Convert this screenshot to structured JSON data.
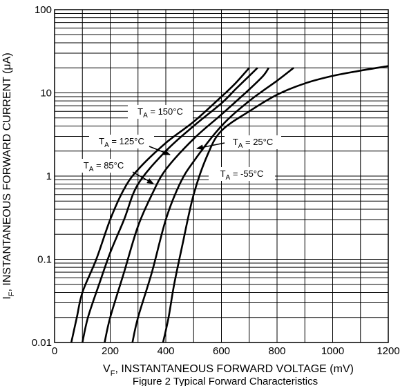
{
  "chart_data": {
    "type": "line",
    "title": "",
    "caption": "Figure 2 Typical Forward Characteristics",
    "xlabel": {
      "main": "V",
      "sub": "F",
      "rest": ", INSTANTANEOUS FORWARD VOLTAGE (mV)"
    },
    "ylabel": {
      "main": "I",
      "sub": "F",
      "rest": ", INSTANTANEOUS FORWARD CURRENT (μA)"
    },
    "xlim": [
      0,
      1200
    ],
    "ylim": [
      0.01,
      100
    ],
    "y_scale": "log",
    "grid": true,
    "x_ticks": [
      {
        "value": 0,
        "label": "0"
      },
      {
        "value": 200,
        "label": "200"
      },
      {
        "value": 400,
        "label": "400"
      },
      {
        "value": 600,
        "label": "600"
      },
      {
        "value": 800,
        "label": "800"
      },
      {
        "value": 1000,
        "label": "1000"
      },
      {
        "value": 1200,
        "label": "1200"
      }
    ],
    "y_ticks": [
      {
        "value": 0.01,
        "label": "0.01"
      },
      {
        "value": 0.1,
        "label": "0.1"
      },
      {
        "value": 1,
        "label": "1"
      },
      {
        "value": 10,
        "label": "10"
      },
      {
        "value": 100,
        "label": "100"
      }
    ],
    "series": [
      {
        "name": "T_A = 150°C",
        "points": [
          [
            60,
            0.01
          ],
          [
            80,
            0.02
          ],
          [
            100,
            0.04
          ],
          [
            150,
            0.1
          ],
          [
            200,
            0.3
          ],
          [
            250,
            0.7
          ],
          [
            300,
            1.2
          ],
          [
            400,
            2.5
          ],
          [
            500,
            4.5
          ],
          [
            600,
            9
          ],
          [
            650,
            13
          ],
          [
            700,
            20
          ]
        ]
      },
      {
        "name": "T_A = 125°C",
        "points": [
          [
            100,
            0.01
          ],
          [
            120,
            0.02
          ],
          [
            160,
            0.05
          ],
          [
            200,
            0.12
          ],
          [
            250,
            0.3
          ],
          [
            300,
            0.8
          ],
          [
            400,
            2
          ],
          [
            500,
            4
          ],
          [
            600,
            7.5
          ],
          [
            650,
            11
          ],
          [
            700,
            16
          ],
          [
            730,
            20
          ]
        ]
      },
      {
        "name": "T_A = 85°C",
        "points": [
          [
            180,
            0.01
          ],
          [
            200,
            0.02
          ],
          [
            250,
            0.07
          ],
          [
            300,
            0.25
          ],
          [
            350,
            0.6
          ],
          [
            400,
            1.2
          ],
          [
            500,
            2.8
          ],
          [
            600,
            5.5
          ],
          [
            700,
            11
          ],
          [
            750,
            16
          ],
          [
            770,
            20
          ]
        ]
      },
      {
        "name": "T_A = 25°C",
        "points": [
          [
            280,
            0.01
          ],
          [
            300,
            0.02
          ],
          [
            350,
            0.07
          ],
          [
            400,
            0.3
          ],
          [
            450,
            0.8
          ],
          [
            500,
            1.5
          ],
          [
            600,
            4
          ],
          [
            700,
            8
          ],
          [
            800,
            14
          ],
          [
            860,
            20
          ]
        ]
      },
      {
        "name": "T_A = -55°C",
        "points": [
          [
            390,
            0.01
          ],
          [
            410,
            0.02
          ],
          [
            430,
            0.05
          ],
          [
            460,
            0.15
          ],
          [
            500,
            0.6
          ],
          [
            550,
            1.8
          ],
          [
            600,
            3.5
          ],
          [
            700,
            6
          ],
          [
            800,
            9.5
          ],
          [
            900,
            13
          ],
          [
            1000,
            16
          ],
          [
            1100,
            18.5
          ],
          [
            1200,
            21
          ]
        ]
      }
    ],
    "annotations": [
      {
        "main": "T",
        "sub": "A",
        "rest": " = 150°C"
      },
      {
        "main": "T",
        "sub": "A",
        "rest": " = 125°C"
      },
      {
        "main": "T",
        "sub": "A",
        "rest": " = 85°C"
      },
      {
        "main": "T",
        "sub": "A",
        "rest": " = 25°C"
      },
      {
        "main": "T",
        "sub": "A",
        "rest": " = -55°C"
      }
    ]
  }
}
